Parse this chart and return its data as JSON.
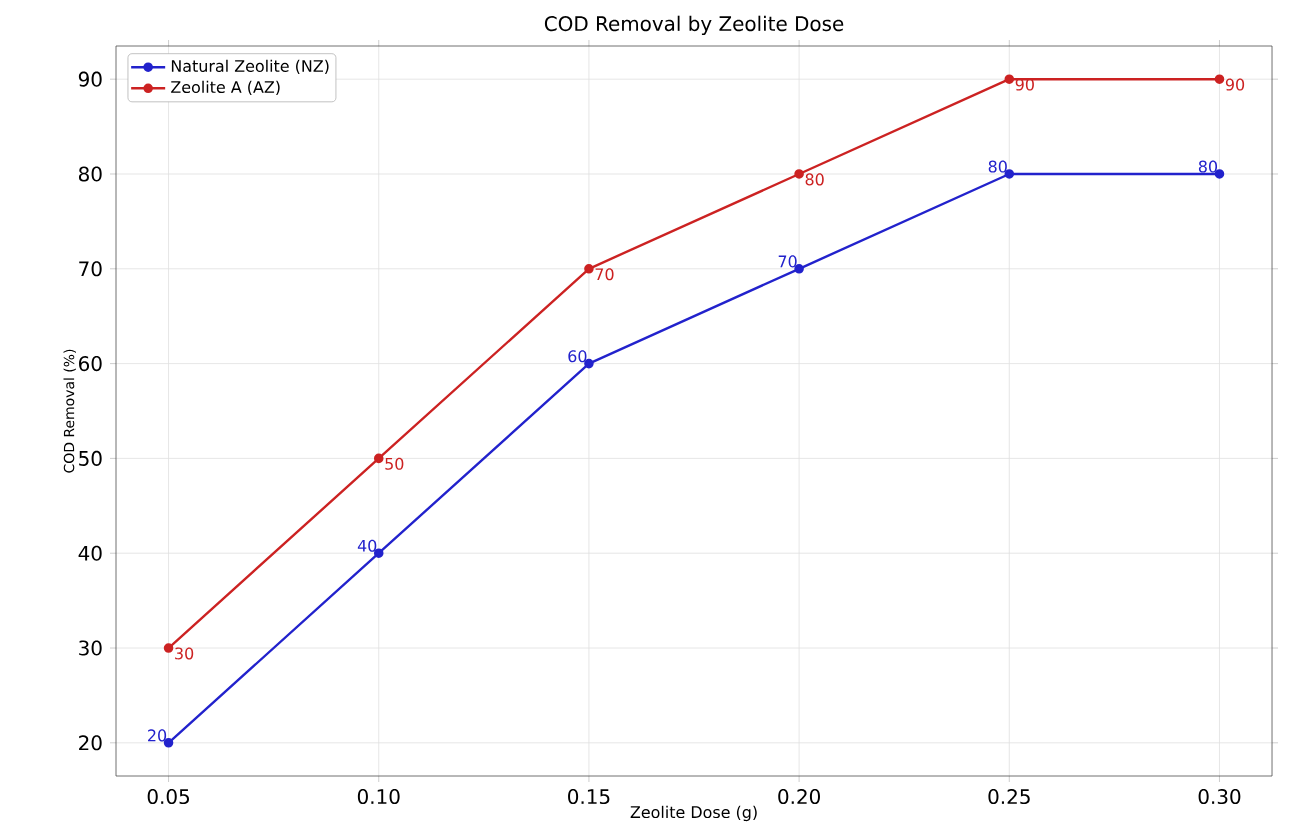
{
  "chart_data": {
    "type": "line",
    "title": "COD Removal by Zeolite Dose",
    "xlabel": "Zeolite Dose (g)",
    "ylabel": "COD Removal (%)",
    "x": [
      0.05,
      0.1,
      0.15,
      0.2,
      0.25,
      0.3
    ],
    "series": [
      {
        "name": "Natural Zeolite (NZ)",
        "color": "#2222cc",
        "values": [
          20,
          40,
          60,
          70,
          80,
          80
        ],
        "value_labels": [
          "20",
          "40",
          "60",
          "70",
          "80",
          "80"
        ]
      },
      {
        "name": "Zeolite A (AZ)",
        "color": "#cc2222",
        "values": [
          30,
          50,
          70,
          80,
          90,
          90
        ],
        "value_labels": [
          "30",
          "50",
          "70",
          "80",
          "90",
          "90"
        ]
      }
    ],
    "xlim": [
      0.0375,
      0.3125
    ],
    "ylim": [
      16.5,
      93.5
    ],
    "xticks": [
      {
        "value": 0.05,
        "label": "0.05"
      },
      {
        "value": 0.1,
        "label": "0.10"
      },
      {
        "value": 0.15,
        "label": "0.15"
      },
      {
        "value": 0.2,
        "label": "0.20"
      },
      {
        "value": 0.25,
        "label": "0.25"
      },
      {
        "value": 0.3,
        "label": "0.30"
      }
    ],
    "yticks": [
      20,
      30,
      40,
      50,
      60,
      70,
      80,
      90
    ],
    "grid": true,
    "legend": "top left",
    "marker": "circle",
    "line_style": "solid"
  }
}
